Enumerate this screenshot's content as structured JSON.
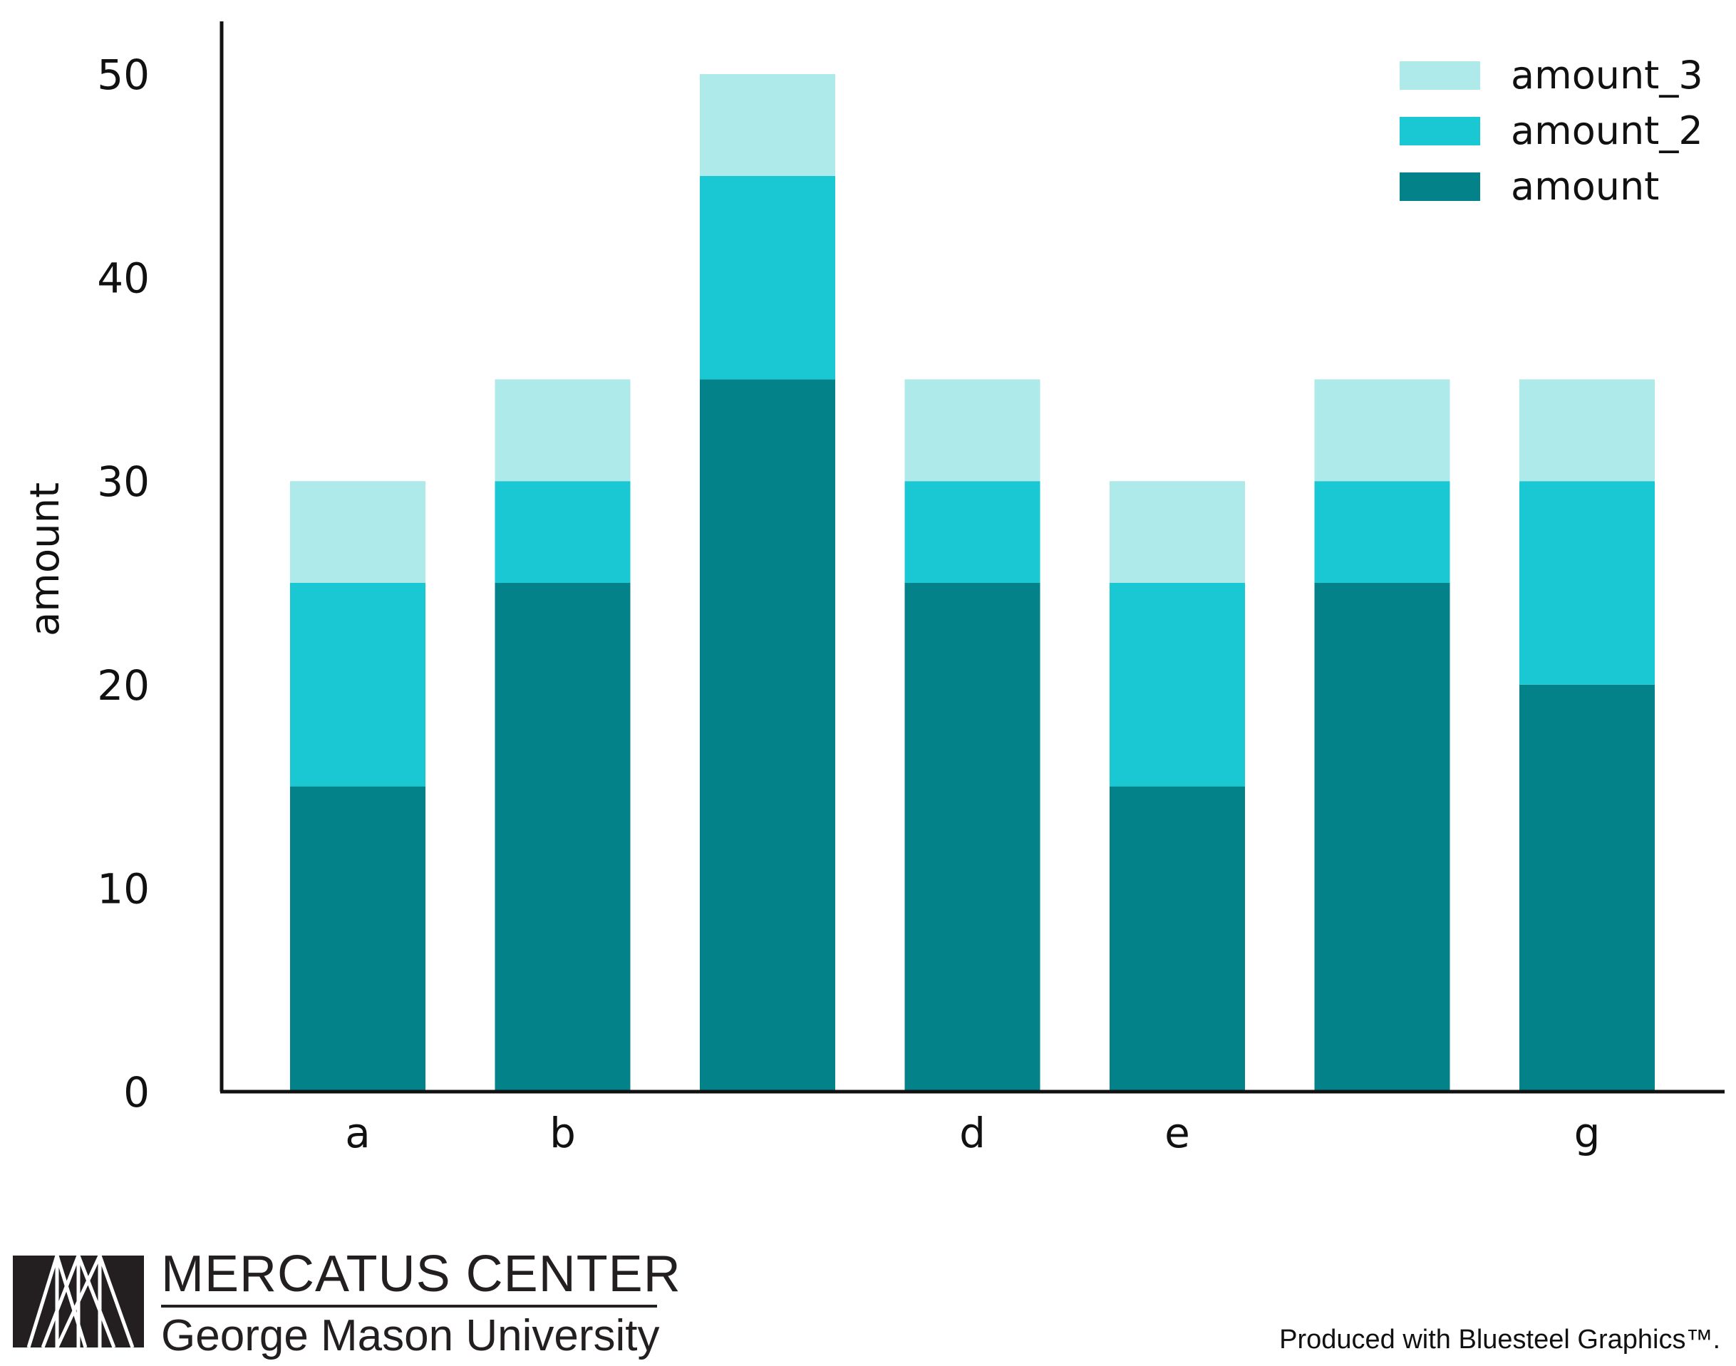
{
  "chart_data": {
    "type": "bar",
    "stacked": true,
    "categories": [
      "a",
      "b",
      "",
      "d",
      "e",
      "",
      "g"
    ],
    "series": [
      {
        "name": "amount",
        "values": [
          15,
          25,
          35,
          25,
          15,
          25,
          20
        ],
        "color": "#03828a"
      },
      {
        "name": "amount_2",
        "values": [
          10,
          5,
          10,
          5,
          10,
          5,
          10
        ],
        "color": "#19c8d2"
      },
      {
        "name": "amount_3",
        "values": [
          5,
          5,
          5,
          5,
          5,
          5,
          5
        ],
        "color": "#aeeae9"
      }
    ],
    "ylabel": "amount",
    "xlabel": "",
    "ylim": [
      0,
      50
    ],
    "yticks": [
      "0",
      "10",
      "20",
      "30",
      "40",
      "50"
    ],
    "grid": false,
    "legend_position": "top-right",
    "legend_order": [
      "amount_3",
      "amount_2",
      "amount"
    ]
  },
  "footer": {
    "org_name": "MERCATUS CENTER",
    "university": "George Mason University",
    "credit": "Produced with Bluesteel Graphics™."
  }
}
